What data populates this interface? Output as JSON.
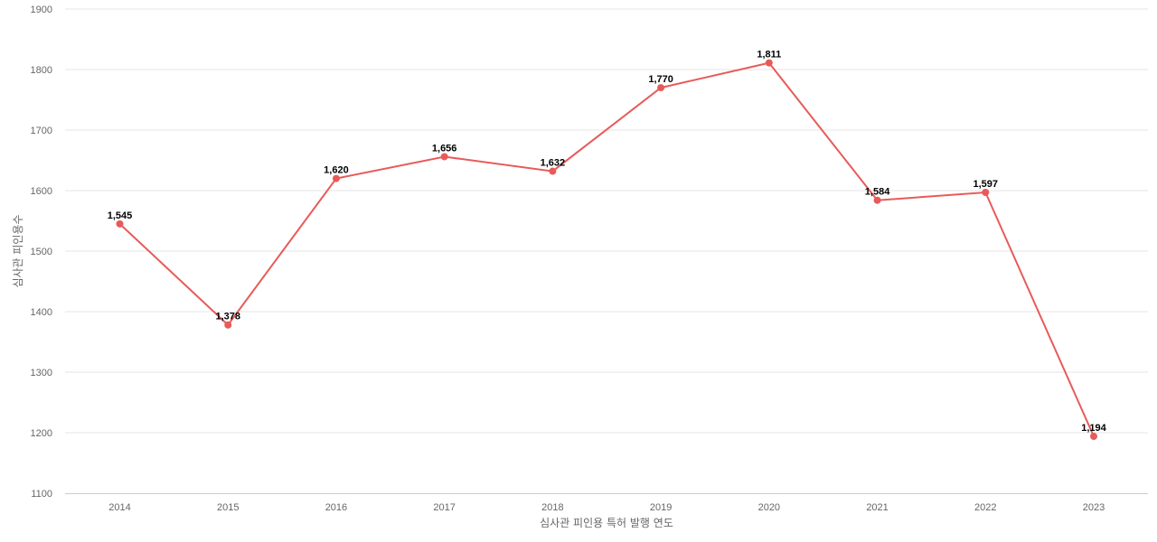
{
  "chart_data": {
    "type": "line",
    "title": "",
    "xlabel": "심사관 피인용 특허 발행 연도",
    "ylabel": "심사관 피인용수",
    "categories": [
      "2014",
      "2015",
      "2016",
      "2017",
      "2018",
      "2019",
      "2020",
      "2021",
      "2022",
      "2023"
    ],
    "series": [
      {
        "values": [
          1545,
          1378,
          1620,
          1656,
          1632,
          1770,
          1811,
          1584,
          1597,
          1194
        ],
        "labels": [
          "1,545",
          "1,378",
          "1,620",
          "1,656",
          "1,632",
          "1,770",
          "1,811",
          "1,584",
          "1,597",
          "1,194"
        ],
        "color": "#e85a5a"
      }
    ],
    "ylim": [
      1100,
      1900
    ],
    "yticks": [
      1100,
      1200,
      1300,
      1400,
      1500,
      1600,
      1700,
      1800,
      1900
    ],
    "grid": true,
    "legend": "none"
  }
}
